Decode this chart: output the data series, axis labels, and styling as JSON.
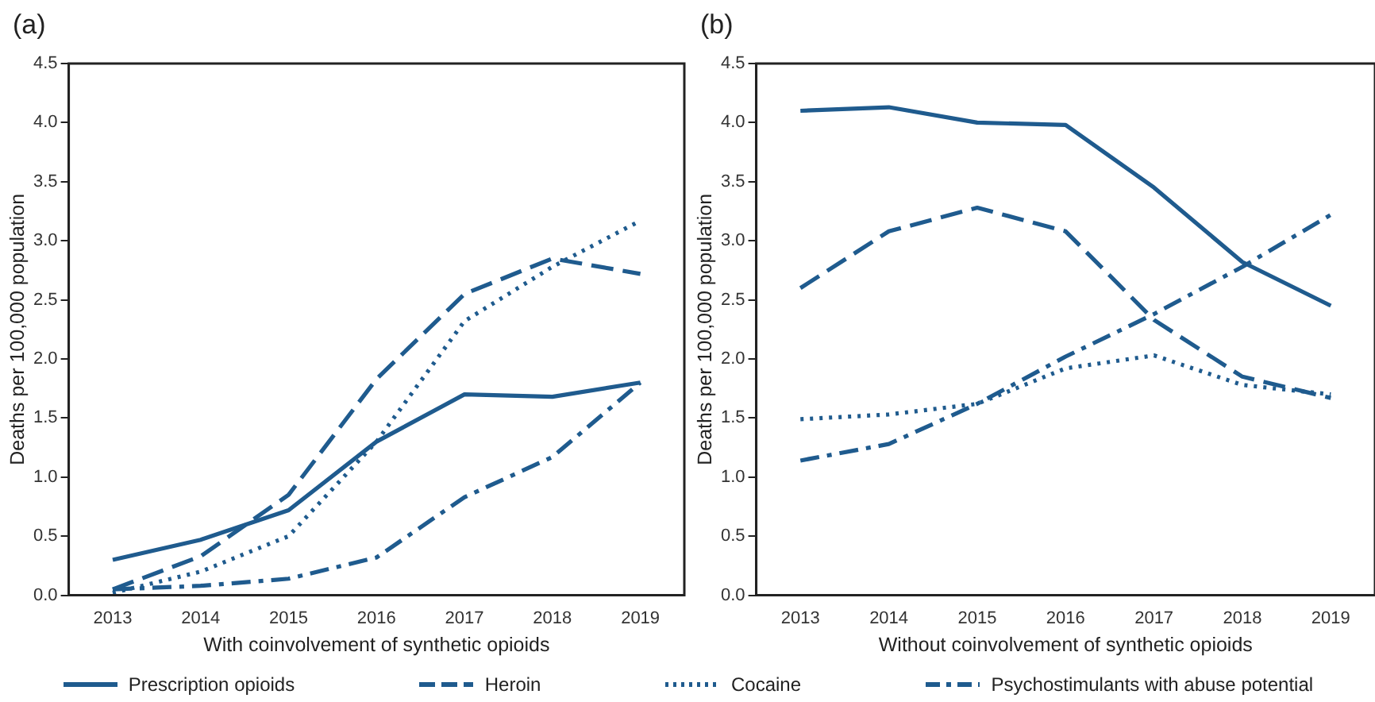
{
  "chart_data": [
    {
      "type": "line",
      "title": "(a)",
      "xlabel": "With coinvolvement of synthetic opioids",
      "ylabel": "Deaths per 100,000 population",
      "categories": [
        "2013",
        "2014",
        "2015",
        "2016",
        "2017",
        "2018",
        "2019"
      ],
      "ylim": [
        0,
        4.5
      ],
      "yticks": [
        {
          "value": 0,
          "label": "0.0"
        },
        {
          "value": 0.5,
          "label": "0.5"
        },
        {
          "value": 1,
          "label": "1.0"
        },
        {
          "value": 1.5,
          "label": "1.5"
        },
        {
          "value": 2,
          "label": "2.0"
        },
        {
          "value": 2.5,
          "label": "2.5"
        },
        {
          "value": 3,
          "label": "3.0"
        },
        {
          "value": 3.5,
          "label": "3.5"
        },
        {
          "value": 4,
          "label": "4.0"
        },
        {
          "value": 4.5,
          "label": "4.5"
        }
      ],
      "grid": false,
      "legend": "bottom",
      "marker": "none",
      "series": [
        {
          "name": "Prescription opioids",
          "color": "#1f5b8e",
          "line_style": "solid",
          "values": [
            0.3,
            0.47,
            0.72,
            1.3,
            1.7,
            1.68,
            1.8
          ]
        },
        {
          "name": "Heroin",
          "color": "#1f5b8e",
          "line_style": "dashed",
          "values": [
            0.05,
            0.33,
            0.85,
            1.83,
            2.55,
            2.85,
            2.72
          ]
        },
        {
          "name": "Cocaine",
          "color": "#1f5b8e",
          "line_style": "dotted",
          "values": [
            0.02,
            0.2,
            0.5,
            1.3,
            2.32,
            2.78,
            3.17
          ]
        },
        {
          "name": "Psychostimulants with abuse potential",
          "color": "#1f5b8e",
          "line_style": "dashdot",
          "values": [
            0.05,
            0.08,
            0.14,
            0.32,
            0.83,
            1.17,
            1.8
          ]
        }
      ]
    },
    {
      "type": "line",
      "title": "(b)",
      "xlabel": "Without coinvolvement of synthetic opioids",
      "ylabel": "Deaths per 100,000 population",
      "categories": [
        "2013",
        "2014",
        "2015",
        "2016",
        "2017",
        "2018",
        "2019"
      ],
      "ylim": [
        0,
        4.5
      ],
      "yticks": [
        {
          "value": 0,
          "label": "0.0"
        },
        {
          "value": 0.5,
          "label": "0.5"
        },
        {
          "value": 1,
          "label": "1.0"
        },
        {
          "value": 1.5,
          "label": "1.5"
        },
        {
          "value": 2,
          "label": "2.0"
        },
        {
          "value": 2.5,
          "label": "2.5"
        },
        {
          "value": 3,
          "label": "3.0"
        },
        {
          "value": 3.5,
          "label": "3.5"
        },
        {
          "value": 4,
          "label": "4.0"
        },
        {
          "value": 4.5,
          "label": "4.5"
        }
      ],
      "grid": false,
      "marker": "none",
      "series": [
        {
          "color": "#1f5b8e",
          "line_style": "solid",
          "values": [
            4.1,
            4.13,
            4.0,
            3.98,
            3.45,
            2.82,
            2.45
          ]
        },
        {
          "color": "#1f5b8e",
          "line_style": "dashed",
          "values": [
            2.6,
            3.08,
            3.28,
            3.08,
            2.33,
            1.85,
            1.67
          ]
        },
        {
          "color": "#1f5b8e",
          "line_style": "dotted",
          "values": [
            1.49,
            1.53,
            1.62,
            1.92,
            2.03,
            1.78,
            1.7
          ]
        },
        {
          "color": "#1f5b8e",
          "line_style": "dashdot",
          "values": [
            1.14,
            1.28,
            1.62,
            2.02,
            2.38,
            2.78,
            3.22
          ]
        }
      ]
    }
  ]
}
